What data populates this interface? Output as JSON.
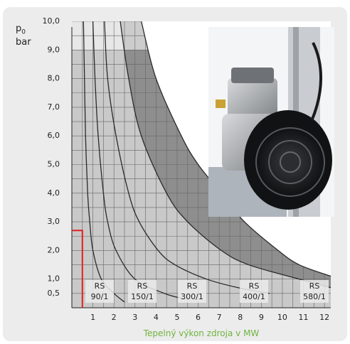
{
  "chart_data": {
    "type": "line",
    "y_label": {
      "symbol": "p",
      "subscript": "0",
      "unit": "bar"
    },
    "x_label": "Tepelný výkon zdroja v MW",
    "xlim": [
      0,
      12.3
    ],
    "ylim": [
      0,
      10
    ],
    "xticks": [
      1,
      2,
      3,
      4,
      5,
      6,
      7,
      8,
      9,
      10,
      11,
      12
    ],
    "yticks": [
      {
        "value": 0.5,
        "label": "0,5"
      },
      {
        "value": 1,
        "label": "1,0"
      },
      {
        "value": 2,
        "label": "2,0"
      },
      {
        "value": 3,
        "label": "3,0"
      },
      {
        "value": 4,
        "label": "4,0"
      },
      {
        "value": 5,
        "label": "5,0"
      },
      {
        "value": 6,
        "label": "6,0"
      },
      {
        "value": 7,
        "label": "7,0"
      },
      {
        "value": 8,
        "label": "8,0"
      },
      {
        "value": 9,
        "label": "9,0"
      },
      {
        "value": 10,
        "label": "10,0"
      }
    ],
    "grid": true,
    "series": [
      {
        "name": "RS 90/1",
        "color": "#2a2a2a",
        "x": [
          0.55,
          0.6,
          0.65,
          0.75,
          0.85,
          1.0,
          1.4,
          2.0,
          2.5
        ],
        "values": [
          10,
          8,
          6,
          4,
          3,
          2,
          1,
          0.5,
          0.2
        ]
      },
      {
        "name": "RS 150/1",
        "color": "#2a2a2a",
        "x": [
          1.0,
          1.1,
          1.25,
          1.5,
          1.7,
          2.1,
          3.0,
          4.4,
          5.4
        ],
        "values": [
          10,
          8,
          6,
          4,
          3,
          2,
          1,
          0.5,
          0.3
        ]
      },
      {
        "name": "RS 300/1",
        "color": "#2a2a2a",
        "x": [
          1.55,
          1.7,
          2.1,
          2.7,
          3.2,
          4.1,
          4.9,
          6.4,
          7.9,
          9.4
        ],
        "values": [
          10,
          8,
          6,
          4,
          3,
          2,
          1.5,
          1,
          0.7,
          0.5
        ]
      },
      {
        "name": "RS 400/1",
        "color": "#2a2a2a",
        "x": [
          2.3,
          2.7,
          3.3,
          4.5,
          5.5,
          7.1,
          8.4,
          10.8,
          12.3
        ],
        "values": [
          10,
          8,
          6,
          4,
          3,
          2,
          1.5,
          1,
          0.7
        ]
      },
      {
        "name": "RS 580/1",
        "color": "#2a2a2a",
        "x": [
          3.3,
          4.0,
          5.2,
          6.0,
          7.1,
          8.2,
          9.8,
          10.8,
          12.3
        ],
        "values": [
          10,
          8,
          6,
          5,
          4,
          3,
          2,
          1.5,
          1.1
        ]
      }
    ],
    "highlight": {
      "x": 0.5,
      "y": 2.7,
      "color": "#e02020"
    }
  }
}
